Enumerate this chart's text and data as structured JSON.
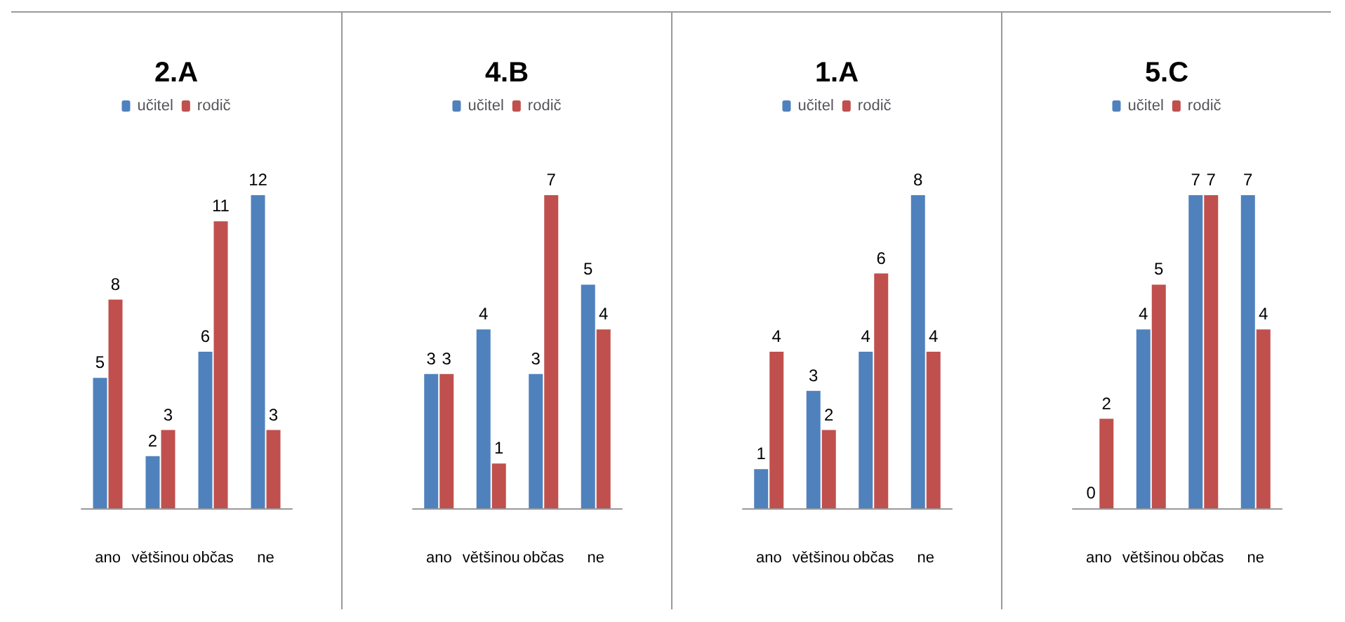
{
  "chart_data": [
    {
      "type": "bar",
      "title": "2.A",
      "categories": [
        "ano",
        "většinou",
        "občas",
        "ne"
      ],
      "series": [
        {
          "name": "učitel",
          "color": "#4f81bd",
          "values": [
            5,
            2,
            6,
            12
          ]
        },
        {
          "name": "rodič",
          "color": "#c0504d",
          "values": [
            8,
            3,
            11,
            3
          ]
        }
      ],
      "data_labels": true,
      "legend": "top",
      "grid": false
    },
    {
      "type": "bar",
      "title": "4.B",
      "categories": [
        "ano",
        "většinou",
        "občas",
        "ne"
      ],
      "series": [
        {
          "name": "učitel",
          "color": "#4f81bd",
          "values": [
            3,
            4,
            3,
            5
          ]
        },
        {
          "name": "rodič",
          "color": "#c0504d",
          "values": [
            3,
            1,
            7,
            4
          ]
        }
      ],
      "data_labels": true,
      "legend": "top",
      "grid": false
    },
    {
      "type": "bar",
      "title": "1.A",
      "categories": [
        "ano",
        "většinou",
        "občas",
        "ne"
      ],
      "series": [
        {
          "name": "učitel",
          "color": "#4f81bd",
          "values": [
            1,
            3,
            4,
            8
          ]
        },
        {
          "name": "rodič",
          "color": "#c0504d",
          "values": [
            4,
            2,
            6,
            4
          ]
        }
      ],
      "data_labels": true,
      "legend": "top",
      "grid": false
    },
    {
      "type": "bar",
      "title": "5.C",
      "categories": [
        "ano",
        "většinou",
        "občas",
        "ne"
      ],
      "series": [
        {
          "name": "učitel",
          "color": "#4f81bd",
          "values": [
            0,
            4,
            7,
            7
          ]
        },
        {
          "name": "rodič",
          "color": "#c0504d",
          "values": [
            2,
            5,
            7,
            4
          ]
        }
      ],
      "data_labels": true,
      "legend": "top",
      "grid": false
    }
  ]
}
